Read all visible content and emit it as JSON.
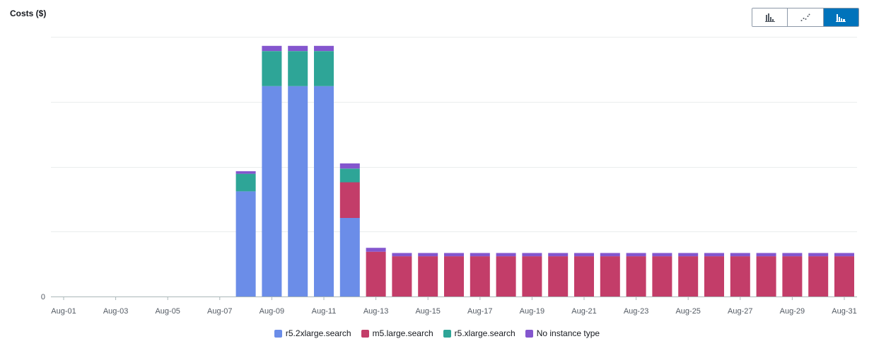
{
  "chart_data": {
    "type": "bar",
    "stacked": true,
    "title": "Costs ($)",
    "categories": [
      "Aug-01",
      "Aug-02",
      "Aug-03",
      "Aug-04",
      "Aug-05",
      "Aug-06",
      "Aug-07",
      "Aug-08",
      "Aug-09",
      "Aug-10",
      "Aug-11",
      "Aug-12",
      "Aug-13",
      "Aug-14",
      "Aug-15",
      "Aug-16",
      "Aug-17",
      "Aug-18",
      "Aug-19",
      "Aug-20",
      "Aug-21",
      "Aug-22",
      "Aug-23",
      "Aug-24",
      "Aug-25",
      "Aug-26",
      "Aug-27",
      "Aug-28",
      "Aug-29",
      "Aug-30",
      "Aug-31"
    ],
    "x_tick_labels": [
      "Aug-01",
      "Aug-03",
      "Aug-05",
      "Aug-07",
      "Aug-09",
      "Aug-11",
      "Aug-13",
      "Aug-15",
      "Aug-17",
      "Aug-19",
      "Aug-21",
      "Aug-23",
      "Aug-25",
      "Aug-27",
      "Aug-29",
      "Aug-31"
    ],
    "y_tick_labels": [
      "0"
    ],
    "y_tick_count": 5,
    "ylim": [
      0,
      4
    ],
    "series": [
      {
        "name": "r5.2xlarge.search",
        "color": "#6b8de8",
        "values": [
          0,
          0,
          0,
          0,
          0,
          0,
          0,
          1.62,
          3.24,
          3.24,
          3.24,
          1.21,
          0,
          0,
          0,
          0,
          0,
          0,
          0,
          0,
          0,
          0,
          0,
          0,
          0,
          0,
          0,
          0,
          0,
          0,
          0
        ]
      },
      {
        "name": "m5.large.search",
        "color": "#c33d69",
        "values": [
          0,
          0,
          0,
          0,
          0,
          0,
          0,
          0,
          0,
          0,
          0,
          0.55,
          0.69,
          0.62,
          0.62,
          0.62,
          0.62,
          0.62,
          0.62,
          0.62,
          0.62,
          0.62,
          0.62,
          0.62,
          0.62,
          0.62,
          0.62,
          0.62,
          0.62,
          0.62,
          0.62
        ]
      },
      {
        "name": "r5.xlarge.search",
        "color": "#2ea597",
        "values": [
          0,
          0,
          0,
          0,
          0,
          0,
          0,
          0.27,
          0.54,
          0.54,
          0.54,
          0.21,
          0,
          0,
          0,
          0,
          0,
          0,
          0,
          0,
          0,
          0,
          0,
          0,
          0,
          0,
          0,
          0,
          0,
          0,
          0
        ]
      },
      {
        "name": "No instance type",
        "color": "#8456ce",
        "values": [
          0,
          0,
          0,
          0,
          0,
          0,
          0,
          0.04,
          0.08,
          0.08,
          0.08,
          0.08,
          0.06,
          0.05,
          0.05,
          0.05,
          0.05,
          0.05,
          0.05,
          0.05,
          0.05,
          0.05,
          0.05,
          0.05,
          0.05,
          0.05,
          0.05,
          0.05,
          0.05,
          0.05,
          0.05
        ]
      }
    ],
    "grid": true,
    "legend_position": "bottom-center"
  },
  "view_toggle": {
    "buttons": [
      {
        "name": "bar-chart-view",
        "icon": "bar-chart-icon",
        "active": false
      },
      {
        "name": "line-chart-view",
        "icon": "line-chart-icon",
        "active": false
      },
      {
        "name": "stacked-bar-view",
        "icon": "stacked-bar-chart-icon",
        "active": true
      }
    ]
  }
}
